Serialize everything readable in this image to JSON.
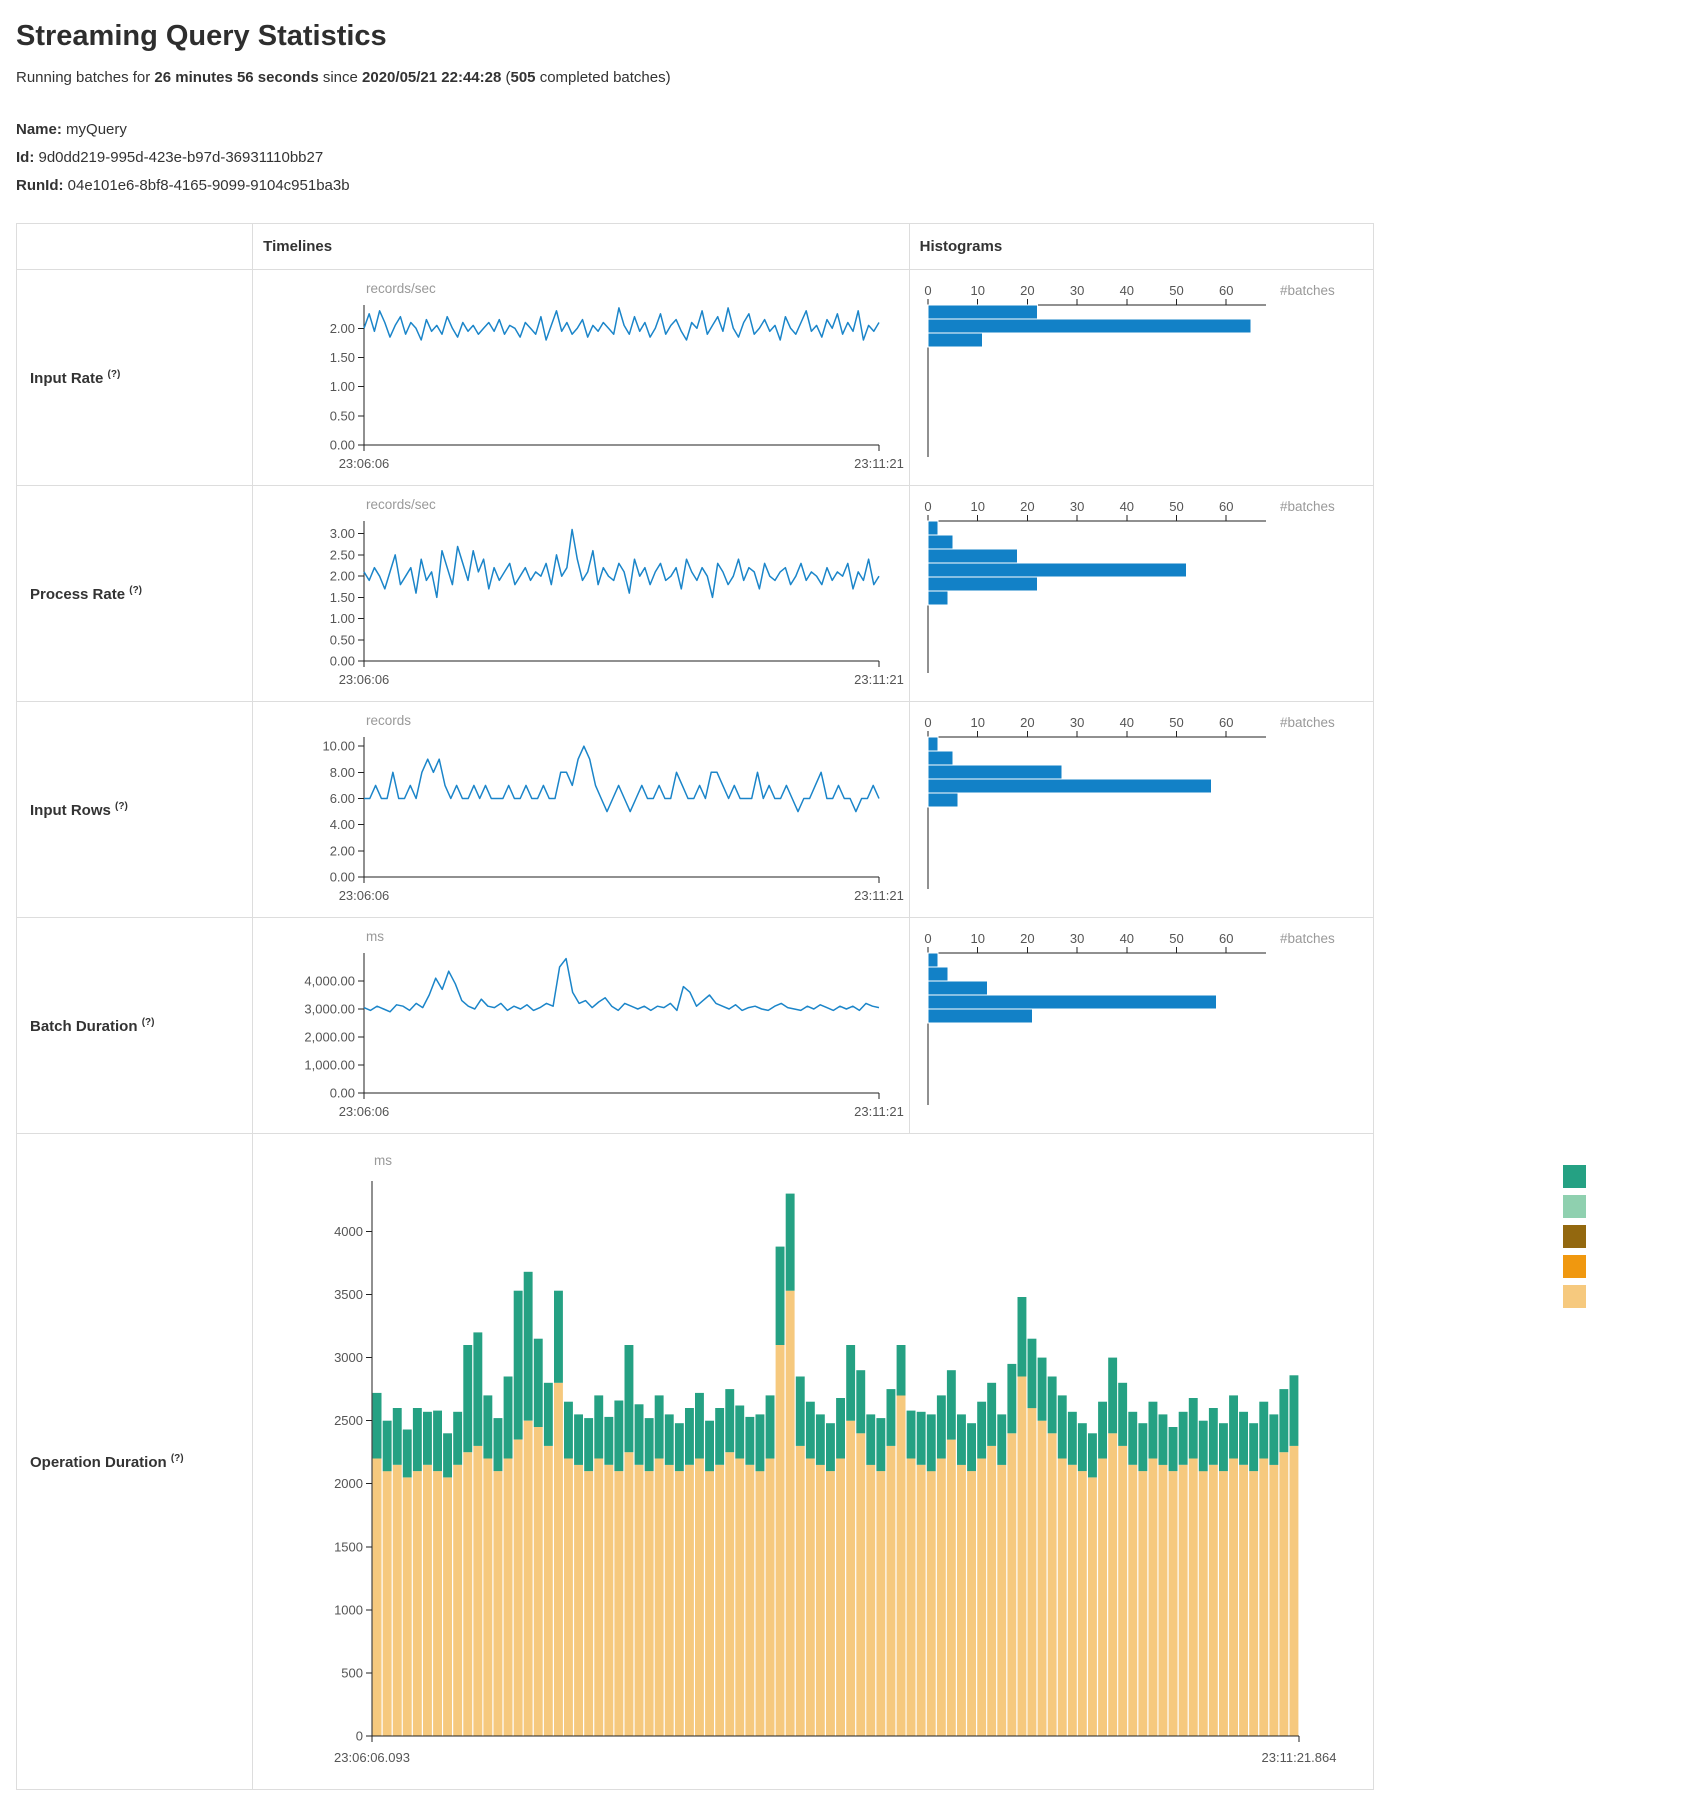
{
  "page": {
    "title": "Streaming Query Statistics",
    "subtitle": {
      "prefix": "Running batches for ",
      "duration": "26 minutes 56 seconds",
      "middle": " since ",
      "start_time": "2020/05/21 22:44:28",
      "open_paren": " (",
      "completed_batches": "505",
      "suffix": " completed batches)"
    },
    "query": {
      "name_label": "Name:",
      "name": "myQuery",
      "id_label": "Id:",
      "id": "9d0dd219-995d-423e-b97d-36931110bb27",
      "runid_label": "RunId:",
      "runid": "04e101e6-8bf8-4165-9099-9104c951ba3b"
    }
  },
  "ui": {
    "help_marker": "(?)",
    "headers": {
      "timelines": "Timelines",
      "histograms": "Histograms"
    }
  },
  "colors": {
    "line": "#1b85c9",
    "histogram": "#1281c7",
    "axis": "#222222",
    "tick_text": "#555555",
    "unit_text": "#999999"
  },
  "chart_data": [
    {
      "row": "Input Rate",
      "timeline": {
        "type": "line",
        "ylabel": "records/sec",
        "x_start": "23:06:06",
        "x_end": "23:11:21",
        "ymax": 2.4,
        "yticks": [
          {
            "v": 0,
            "label": "0.00"
          },
          {
            "v": 0.5,
            "label": "0.50"
          },
          {
            "v": 1,
            "label": "1.00"
          },
          {
            "v": 1.5,
            "label": "1.50"
          },
          {
            "v": 2,
            "label": "2.00"
          }
        ],
        "values": [
          2.0,
          2.25,
          1.95,
          2.3,
          2.1,
          1.85,
          2.05,
          2.2,
          1.9,
          2.1,
          2.0,
          1.8,
          2.15,
          1.95,
          2.05,
          1.9,
          2.2,
          2.0,
          1.85,
          2.1,
          1.95,
          2.05,
          1.9,
          2.0,
          2.1,
          1.95,
          2.15,
          1.9,
          2.05,
          2.0,
          1.85,
          2.1,
          2.0,
          1.9,
          2.2,
          1.8,
          2.05,
          2.3,
          1.95,
          2.1,
          1.9,
          2.0,
          2.15,
          1.85,
          2.05,
          1.95,
          2.1,
          2.0,
          1.9,
          2.35,
          2.05,
          1.9,
          2.2,
          1.95,
          2.1,
          1.85,
          2.0,
          2.25,
          1.9,
          2.05,
          2.15,
          1.95,
          1.8,
          2.1,
          2.0,
          2.3,
          1.9,
          2.05,
          2.2,
          1.95,
          2.35,
          2.0,
          1.85,
          2.1,
          2.25,
          1.9,
          2.0,
          2.15,
          1.95,
          2.05,
          1.8,
          2.2,
          2.0,
          1.9,
          2.1,
          2.3,
          1.95,
          2.05,
          1.85,
          2.15,
          2.0,
          2.25,
          1.9,
          2.1,
          1.95,
          2.3,
          1.8,
          2.05,
          1.95,
          2.1
        ]
      },
      "histogram": {
        "type": "bar",
        "orientation": "horizontal",
        "xlabel": "#batches",
        "xticks": [
          0,
          10,
          20,
          30,
          40,
          50,
          60
        ],
        "xmax": 68,
        "counts": [
          22,
          65,
          11
        ]
      }
    },
    {
      "row": "Process Rate",
      "timeline": {
        "type": "line",
        "ylabel": "records/sec",
        "x_start": "23:06:06",
        "x_end": "23:11:21",
        "ymax": 3.3,
        "yticks": [
          {
            "v": 0,
            "label": "0.00"
          },
          {
            "v": 0.5,
            "label": "0.50"
          },
          {
            "v": 1,
            "label": "1.00"
          },
          {
            "v": 1.5,
            "label": "1.50"
          },
          {
            "v": 2,
            "label": "2.00"
          },
          {
            "v": 2.5,
            "label": "2.50"
          },
          {
            "v": 3,
            "label": "3.00"
          }
        ],
        "values": [
          2.1,
          1.9,
          2.2,
          2.0,
          1.7,
          2.1,
          2.5,
          1.8,
          2.0,
          2.2,
          1.6,
          2.4,
          1.9,
          2.1,
          1.5,
          2.6,
          2.2,
          1.8,
          2.7,
          2.3,
          1.9,
          2.6,
          2.1,
          2.4,
          1.7,
          2.2,
          1.9,
          2.1,
          2.3,
          1.8,
          2.0,
          2.2,
          1.9,
          2.1,
          2.0,
          2.3,
          1.8,
          2.5,
          2.0,
          2.2,
          3.1,
          2.4,
          1.9,
          2.1,
          2.6,
          1.8,
          2.2,
          2.0,
          1.9,
          2.3,
          2.1,
          1.6,
          2.4,
          2.0,
          2.2,
          1.8,
          2.1,
          2.3,
          1.9,
          2.0,
          2.2,
          1.7,
          2.4,
          2.1,
          1.9,
          2.2,
          2.0,
          1.5,
          2.3,
          2.1,
          1.8,
          2.0,
          2.4,
          1.9,
          2.2,
          2.1,
          1.7,
          2.3,
          2.0,
          1.9,
          2.1,
          2.2,
          1.8,
          2.0,
          2.3,
          1.9,
          2.1,
          2.0,
          1.8,
          2.2,
          1.9,
          2.1,
          2.0,
          2.3,
          1.7,
          2.1,
          1.9,
          2.4,
          1.8,
          2.0
        ]
      },
      "histogram": {
        "type": "bar",
        "orientation": "horizontal",
        "xlabel": "#batches",
        "xticks": [
          0,
          10,
          20,
          30,
          40,
          50,
          60
        ],
        "xmax": 68,
        "counts": [
          2,
          5,
          18,
          52,
          22,
          4
        ]
      }
    },
    {
      "row": "Input Rows",
      "timeline": {
        "type": "line",
        "ylabel": "records",
        "x_start": "23:06:06",
        "x_end": "23:11:21",
        "ymax": 10.7,
        "yticks": [
          {
            "v": 0,
            "label": "0.00"
          },
          {
            "v": 2,
            "label": "2.00"
          },
          {
            "v": 4,
            "label": "4.00"
          },
          {
            "v": 6,
            "label": "6.00"
          },
          {
            "v": 8,
            "label": "8.00"
          },
          {
            "v": 10,
            "label": "10.00"
          }
        ],
        "values": [
          6,
          6,
          7,
          6,
          6,
          8,
          6,
          6,
          7,
          6,
          8,
          9,
          8,
          9,
          7,
          6,
          7,
          6,
          6,
          7,
          6,
          7,
          6,
          6,
          6,
          7,
          6,
          6,
          7,
          6,
          6,
          7,
          6,
          6,
          8,
          8,
          7,
          9,
          10,
          9,
          7,
          6,
          5,
          6,
          7,
          6,
          5,
          6,
          7,
          6,
          6,
          7,
          6,
          6,
          8,
          7,
          6,
          6,
          7,
          6,
          8,
          8,
          7,
          6,
          7,
          6,
          6,
          6,
          8,
          6,
          7,
          6,
          6,
          7,
          6,
          5,
          6,
          6,
          7,
          8,
          6,
          6,
          7,
          6,
          6,
          5,
          6,
          6,
          7,
          6
        ]
      },
      "histogram": {
        "type": "bar",
        "orientation": "horizontal",
        "xlabel": "#batches",
        "xticks": [
          0,
          10,
          20,
          30,
          40,
          50,
          60
        ],
        "xmax": 68,
        "counts": [
          2,
          5,
          27,
          57,
          6
        ]
      }
    },
    {
      "row": "Batch Duration",
      "timeline": {
        "type": "line",
        "ylabel": "ms",
        "x_start": "23:06:06",
        "x_end": "23:11:21",
        "ymax": 5000,
        "yticks": [
          {
            "v": 0,
            "label": "0.00"
          },
          {
            "v": 1000,
            "label": "1,000.00"
          },
          {
            "v": 2000,
            "label": "2,000.00"
          },
          {
            "v": 3000,
            "label": "3,000.00"
          },
          {
            "v": 4000,
            "label": "4,000.00"
          }
        ],
        "values": [
          3050,
          2950,
          3100,
          3000,
          2900,
          3150,
          3100,
          2950,
          3200,
          3050,
          3500,
          4100,
          3700,
          4350,
          3900,
          3300,
          3100,
          3000,
          3350,
          3100,
          3050,
          3200,
          2950,
          3100,
          3000,
          3150,
          2950,
          3050,
          3200,
          3100,
          4500,
          4800,
          3600,
          3200,
          3300,
          3050,
          3250,
          3400,
          3100,
          2950,
          3200,
          3100,
          3000,
          3100,
          2950,
          3100,
          3050,
          3200,
          2950,
          3800,
          3600,
          3100,
          3300,
          3500,
          3200,
          3100,
          3000,
          3150,
          2950,
          3050,
          3100,
          3000,
          2950,
          3100,
          3200,
          3050,
          3000,
          2950,
          3100,
          3000,
          3150,
          3050,
          2950,
          3100,
          3000,
          3100,
          2950,
          3200,
          3100,
          3050
        ]
      },
      "histogram": {
        "type": "bar",
        "orientation": "horizontal",
        "xlabel": "#batches",
        "xticks": [
          0,
          10,
          20,
          30,
          40,
          50,
          60
        ],
        "xmax": 68,
        "counts": [
          2,
          4,
          12,
          58,
          21
        ]
      }
    },
    {
      "row": "Operation Duration",
      "timeline": {
        "type": "stacked-bar",
        "ylabel": "ms",
        "x_start": "23:06:06.093",
        "x_end": "23:11:21.864",
        "ymax": 4400,
        "yticks": [
          {
            "v": 0,
            "label": "0"
          },
          {
            "v": 500,
            "label": "500"
          },
          {
            "v": 1000,
            "label": "1000"
          },
          {
            "v": 1500,
            "label": "1500"
          },
          {
            "v": 2000,
            "label": "2000"
          },
          {
            "v": 2500,
            "label": "2500"
          },
          {
            "v": 3000,
            "label": "3000"
          },
          {
            "v": 3500,
            "label": "3500"
          },
          {
            "v": 4000,
            "label": "4000"
          }
        ],
        "series": [
          {
            "name": "base-segment-tan",
            "color": "#f6c97e",
            "values": [
              2200,
              2100,
              2150,
              2050,
              2100,
              2150,
              2100,
              2050,
              2150,
              2250,
              2300,
              2200,
              2100,
              2200,
              2350,
              2500,
              2450,
              2300,
              2800,
              2200,
              2150,
              2100,
              2200,
              2150,
              2100,
              2250,
              2150,
              2100,
              2200,
              2150,
              2100,
              2150,
              2200,
              2100,
              2150,
              2250,
              2200,
              2150,
              2100,
              2200,
              3100,
              3530,
              2300,
              2200,
              2150,
              2100,
              2200,
              2500,
              2400,
              2150,
              2100,
              2300,
              2700,
              2200,
              2150,
              2100,
              2200,
              2350,
              2150,
              2100,
              2200,
              2300,
              2150,
              2400,
              2850,
              2600,
              2500,
              2400,
              2200,
              2150,
              2100,
              2050,
              2200,
              2400,
              2300,
              2150,
              2100,
              2200,
              2150,
              2100,
              2150,
              2200,
              2100,
              2150,
              2100,
              2200,
              2150,
              2100,
              2200,
              2150,
              2250,
              2300
            ]
          },
          {
            "name": "top-segment-teal",
            "color": "#25a183",
            "values": [
              520,
              400,
              450,
              380,
              500,
              420,
              480,
              350,
              420,
              850,
              900,
              500,
              420,
              650,
              1180,
              1180,
              700,
              500,
              730,
              450,
              400,
              420,
              500,
              380,
              560,
              850,
              480,
              420,
              500,
              400,
              380,
              450,
              520,
              400,
              450,
              500,
              420,
              380,
              450,
              500,
              780,
              770,
              550,
              450,
              400,
              380,
              480,
              600,
              500,
              400,
              420,
              450,
              400,
              380,
              420,
              450,
              500,
              550,
              400,
              380,
              450,
              500,
              400,
              550,
              630,
              550,
              500,
              450,
              500,
              420,
              380,
              350,
              450,
              600,
              500,
              420,
              380,
              450,
              400,
              350,
              420,
              480,
              400,
              450,
              380,
              500,
              420,
              380,
              450,
              400,
              500,
              560
            ]
          }
        ],
        "legend_colors": [
          "#25a183",
          "#8fd0af",
          "#93680f",
          "#f0980f",
          "#f6c97e"
        ]
      }
    }
  ]
}
